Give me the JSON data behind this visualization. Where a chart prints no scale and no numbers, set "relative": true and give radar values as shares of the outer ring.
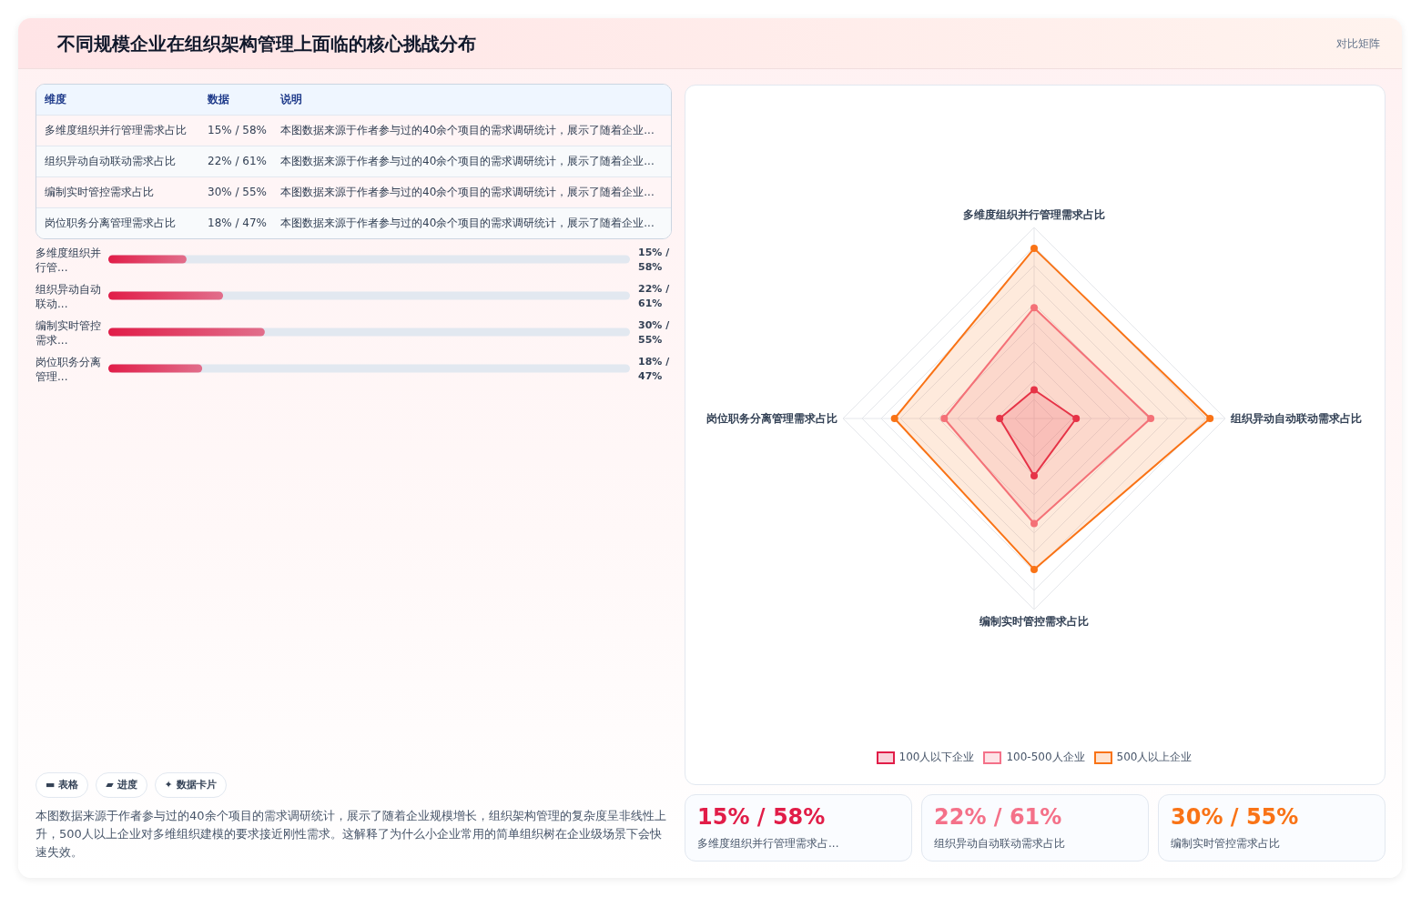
{
  "chart_data": [
    {
      "type": "other",
      "title": "不同规模企业在组织架构管理上面临的核心挑战分布",
      "subtitle": "对比矩阵",
      "annotations": [
        "维度",
        "数据",
        "说明",
        "多维度组织并行管理需求占比",
        "15% / 58%",
        "本图数据来源于作者参与过的40余个项目的需求调研统计，展示了随着企业...",
        "组织异动自动联动需求占比",
        "22% / 61%",
        "本图数据来源于作者参与过的40余个项目的需求调研统计，展示了随着企业...",
        "编制实时管控需求占比",
        "30% / 55%",
        "本图数据来源于作者参与过的40余个项目的需求调研统计，展示了随着企业...",
        "岗位职务分离管理需求占比",
        "18% / 47%",
        "本图数据来源于作者参与过的40余个项目的需求调研统计，展示了随着企业..."
      ]
    },
    {
      "type": "bar",
      "orientation": "horizontal",
      "categories": [
        "多维度组织并行管...",
        "组织异动自动联动...",
        "编制实时管控需求...",
        "岗位职务分离管理..."
      ],
      "values": [
        15,
        22,
        30,
        18
      ],
      "value_labels": [
        "15% / 58%",
        "22% / 61%",
        "30% / 55%",
        "18% / 47%"
      ],
      "xlim": [
        0,
        100
      ],
      "color": "#e11d48"
    },
    {
      "type": "other",
      "annotations": [
        "▬ 表格",
        "▰ 进度",
        "✦ 数据卡片",
        "本图数据来源于作者参与过的40余个项目的需求调研统计，展示了随着企业规模增长，组织架构管理的复杂度呈非线性上升，500人以上企业对多维组织建模的要求接近刚性需求。这解释了为什么小企业常用的简单组织树在企业级场景下会快速失效。"
      ]
    },
    {
      "type": "radar",
      "relative": true,
      "legend": "bottom",
      "categories": [
        "多维度组织并行管理需求占比",
        "组织异动自动联动需求占比",
        "编制实时管控需求占比",
        "岗位职务分离管理需求占比"
      ],
      "series": [
        {
          "name": "100人以下企业",
          "color": "#e11d48",
          "values": [
            0.15,
            0.22,
            0.3,
            0.18
          ]
        },
        {
          "name": "100-500人企业",
          "color": "#f47189",
          "values": [
            0.58,
            0.61,
            0.55,
            0.47
          ]
        },
        {
          "name": "500人以上企业",
          "color": "#f97316",
          "values": [
            0.89,
            0.92,
            0.79,
            0.73
          ]
        }
      ]
    },
    {
      "type": "other",
      "annotations": [
        "15% / 58%",
        "多维度组织并行管理需求占...",
        "22% / 61%",
        "组织异动自动联动需求占比",
        "30% / 55%",
        "编制实时管控需求占比"
      ],
      "colors": [
        "#e11d48",
        "#f47189",
        "#f97316"
      ]
    }
  ]
}
